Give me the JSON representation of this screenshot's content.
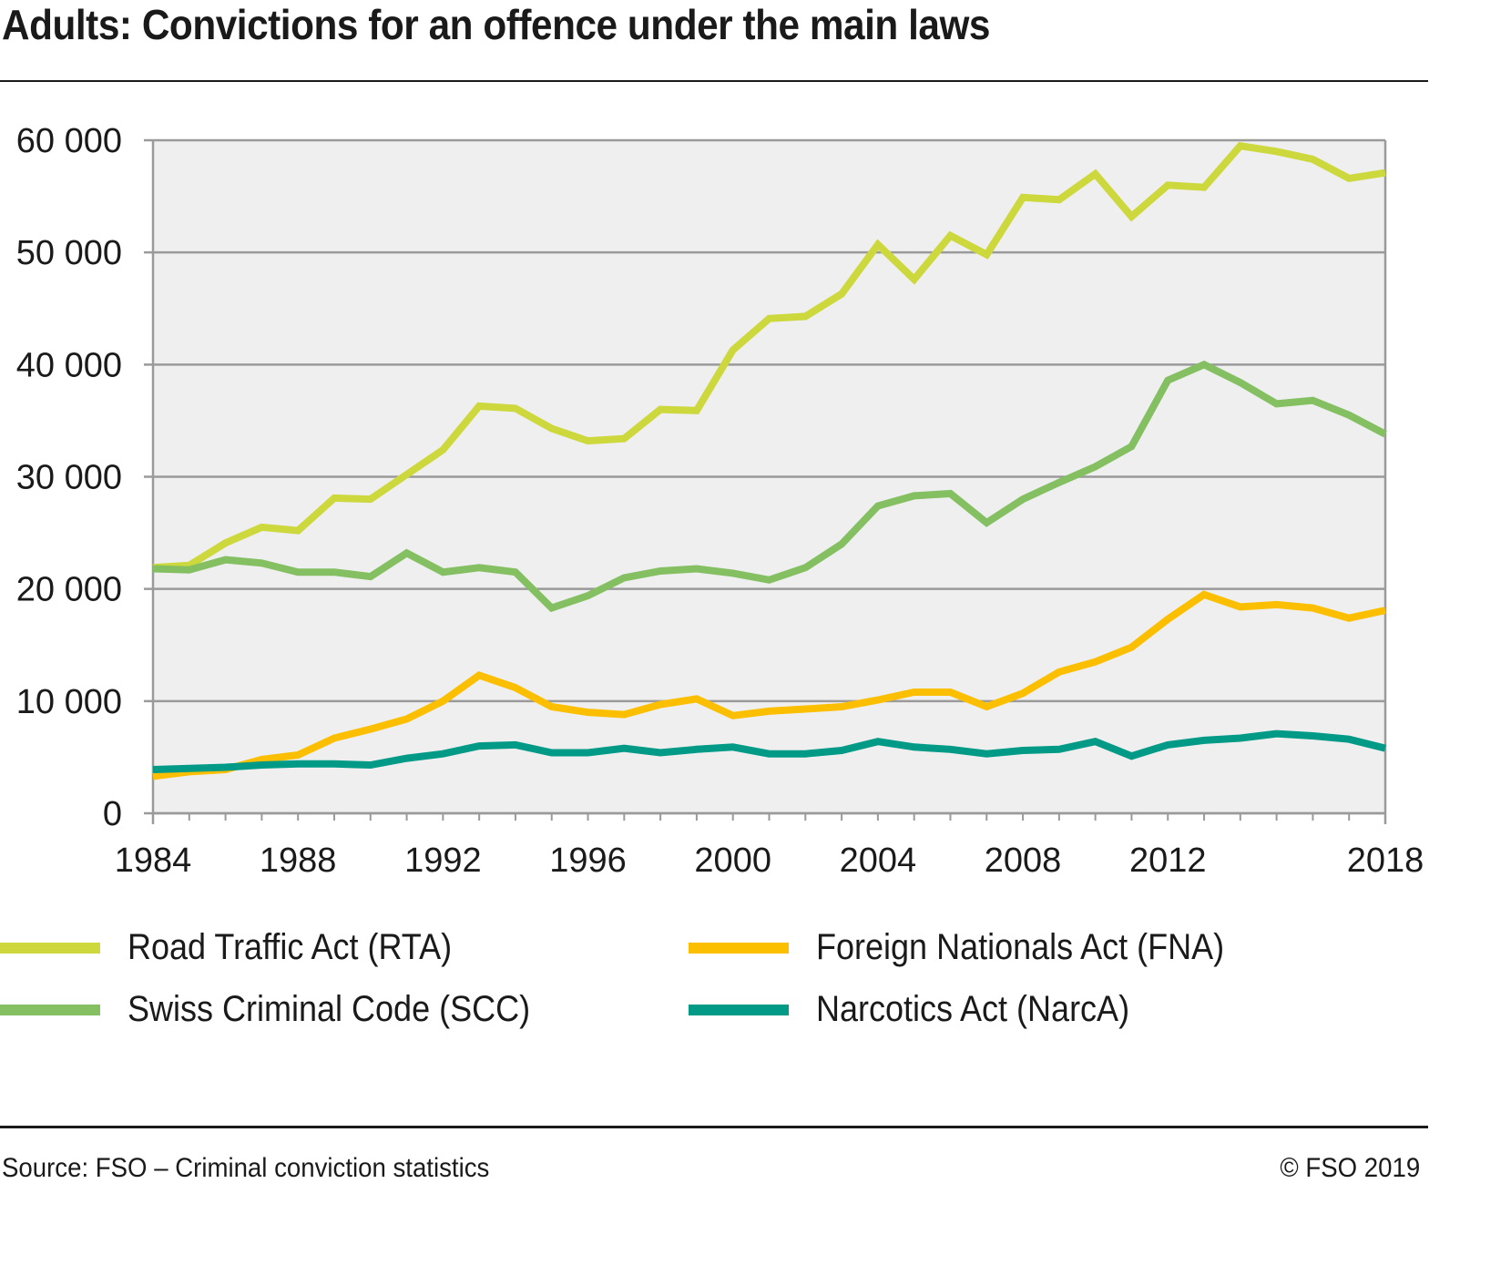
{
  "title": "Adults: Convictions for an offence under the main laws",
  "footer": {
    "source": "Source: FSO – Criminal conviction statistics",
    "copyright": "© FSO 2019"
  },
  "chart_data": {
    "type": "line",
    "title": "Adults: Convictions for an offence under the main laws",
    "xlabel": "",
    "ylabel": "",
    "x": [
      1984,
      1985,
      1986,
      1987,
      1988,
      1989,
      1990,
      1991,
      1992,
      1993,
      1994,
      1995,
      1996,
      1997,
      1998,
      1999,
      2000,
      2001,
      2002,
      2003,
      2004,
      2005,
      2006,
      2007,
      2008,
      2009,
      2010,
      2011,
      2012,
      2013,
      2014,
      2015,
      2016,
      2017,
      2018
    ],
    "xlim": [
      1984,
      2018
    ],
    "ylim": [
      0,
      60000
    ],
    "x_ticks": [
      "1984",
      "1988",
      "1992",
      "1996",
      "2000",
      "2004",
      "2008",
      "2012",
      "2018"
    ],
    "x_tick_values": [
      1984,
      1988,
      1992,
      1996,
      2000,
      2004,
      2008,
      2012,
      2018
    ],
    "y_ticks": [
      "0",
      "10 000",
      "20 000",
      "30 000",
      "40 000",
      "50 000",
      "60 000"
    ],
    "y_tick_values": [
      0,
      10000,
      20000,
      30000,
      40000,
      50000,
      60000
    ],
    "grid": true,
    "legend_position": "bottom",
    "series": [
      {
        "name": "Road Traffic Act (RTA)",
        "color": "#cdd83c",
        "values": [
          21900,
          22100,
          24100,
          25500,
          25200,
          28100,
          28000,
          30200,
          32400,
          36300,
          36100,
          34300,
          33200,
          33400,
          36000,
          35900,
          41300,
          44100,
          44300,
          46300,
          50700,
          47600,
          51500,
          49800,
          54900,
          54700,
          57000,
          53200,
          56000,
          55800,
          59500,
          59000,
          58300,
          56600,
          57100
        ]
      },
      {
        "name": "Swiss Criminal Code (SCC)",
        "color": "#84c062",
        "values": [
          21800,
          21700,
          22600,
          22300,
          21500,
          21500,
          21100,
          23200,
          21500,
          21900,
          21500,
          18300,
          19400,
          21000,
          21600,
          21800,
          21400,
          20800,
          21900,
          24000,
          27400,
          28300,
          28500,
          25900,
          28000,
          29500,
          30900,
          32700,
          38600,
          40000,
          38400,
          36500,
          36800,
          35500,
          33800
        ]
      },
      {
        "name": "Foreign Nationals Act (FNA)",
        "color": "#fbbf00",
        "values": [
          3300,
          3700,
          3900,
          4800,
          5200,
          6700,
          7500,
          8400,
          10000,
          12300,
          11200,
          9500,
          9000,
          8800,
          9700,
          10200,
          8700,
          9100,
          9300,
          9500,
          10100,
          10800,
          10800,
          9500,
          10700,
          12600,
          13500,
          14800,
          17300,
          19500,
          18400,
          18600,
          18300,
          17400,
          18100
        ]
      },
      {
        "name": "Narcotics Act (NarcA)",
        "color": "#009a87",
        "values": [
          3900,
          4000,
          4100,
          4300,
          4400,
          4400,
          4300,
          4900,
          5300,
          6000,
          6100,
          5400,
          5400,
          5800,
          5400,
          5700,
          5900,
          5300,
          5300,
          5600,
          6400,
          5900,
          5700,
          5300,
          5600,
          5700,
          6400,
          5100,
          6100,
          6500,
          6700,
          7100,
          6900,
          6600,
          5800
        ]
      }
    ]
  }
}
